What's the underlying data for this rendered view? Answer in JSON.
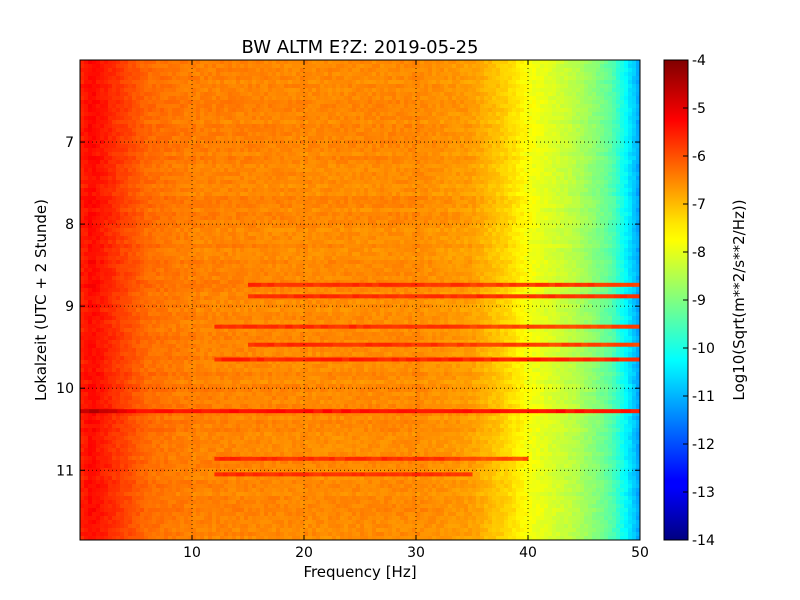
{
  "chart_data": {
    "type": "heatmap",
    "title": "BW ALTM E?Z: 2019-05-25",
    "xlabel": "Frequency [Hz]",
    "ylabel": "Lokalzeit (UTC + 2 Stunde)",
    "xlim": [
      0,
      50
    ],
    "ylim": [
      11.85,
      6.0
    ],
    "x_ticks": [
      10,
      20,
      30,
      40,
      50
    ],
    "y_ticks": [
      7,
      8,
      9,
      10,
      11
    ],
    "grid": true,
    "colorbar": {
      "label": "Log10(Sqrt(m**2/s**2/Hz))",
      "range": [
        -14,
        -4
      ],
      "ticks": [
        -4,
        -5,
        -6,
        -7,
        -8,
        -9,
        -10,
        -11,
        -12,
        -13,
        -14
      ],
      "colormap": "jet"
    },
    "spectrum_profile": [
      {
        "freq": 0.0,
        "value": -5.6
      },
      {
        "freq": 1.0,
        "value": -5.3
      },
      {
        "freq": 2.0,
        "value": -5.5
      },
      {
        "freq": 4.0,
        "value": -5.9
      },
      {
        "freq": 6.0,
        "value": -6.3
      },
      {
        "freq": 10.0,
        "value": -6.5
      },
      {
        "freq": 20.0,
        "value": -6.6
      },
      {
        "freq": 30.0,
        "value": -6.6
      },
      {
        "freq": 35.0,
        "value": -6.8
      },
      {
        "freq": 38.0,
        "value": -7.3
      },
      {
        "freq": 40.0,
        "value": -7.8
      },
      {
        "freq": 42.0,
        "value": -8.1
      },
      {
        "freq": 44.0,
        "value": -8.4
      },
      {
        "freq": 46.0,
        "value": -8.9
      },
      {
        "freq": 47.5,
        "value": -9.4
      },
      {
        "freq": 48.5,
        "value": -10.1
      },
      {
        "freq": 49.5,
        "value": -10.8
      },
      {
        "freq": 50.0,
        "value": -11.2
      }
    ],
    "horizontal_bands": [
      {
        "time": 8.74,
        "freq_from": 15,
        "freq_to": 50,
        "value": -5.8
      },
      {
        "time": 8.88,
        "freq_from": 15,
        "freq_to": 50,
        "value": -5.7
      },
      {
        "time": 9.25,
        "freq_from": 12,
        "freq_to": 50,
        "value": -5.9
      },
      {
        "time": 9.47,
        "freq_from": 15,
        "freq_to": 50,
        "value": -5.9
      },
      {
        "time": 9.65,
        "freq_from": 12,
        "freq_to": 50,
        "value": -5.6
      },
      {
        "time": 10.28,
        "freq_from": 0,
        "freq_to": 50,
        "value": -5.4
      },
      {
        "time": 10.86,
        "freq_from": 12,
        "freq_to": 40,
        "value": -6.0
      },
      {
        "time": 11.05,
        "freq_from": 12,
        "freq_to": 35,
        "value": -6.0
      }
    ]
  }
}
